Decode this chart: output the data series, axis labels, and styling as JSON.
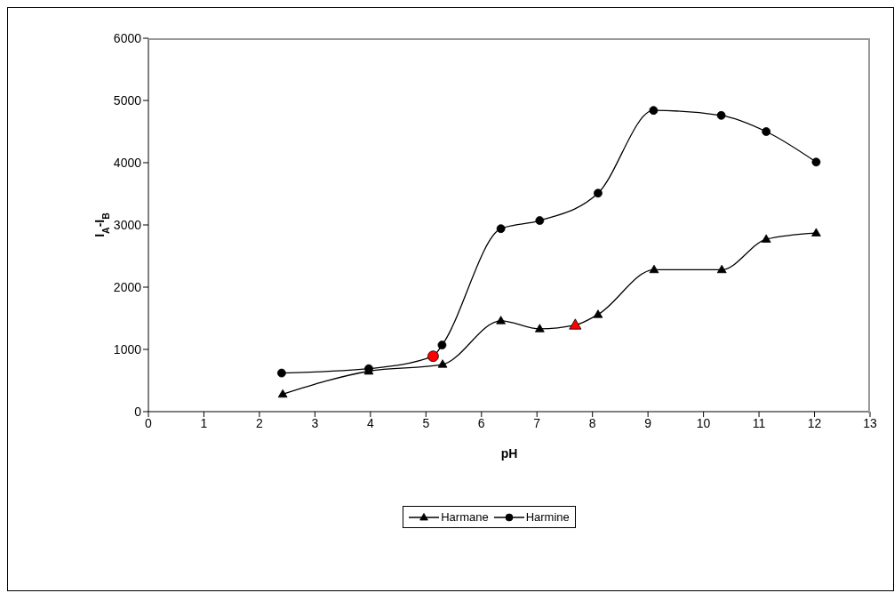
{
  "chart_data": {
    "type": "line",
    "xlabel": "pH",
    "ylabel": "I$_{A}$-I$_{B}$",
    "xlim": [
      0,
      13
    ],
    "xticks": [
      0,
      1,
      2,
      3,
      4,
      5,
      6,
      7,
      8,
      9,
      10,
      11,
      12,
      13
    ],
    "ylim": [
      0,
      6000
    ],
    "yticks": [
      0,
      1000,
      2000,
      3000,
      4000,
      5000,
      6000
    ],
    "grid": false,
    "legend": "bottom",
    "line_style": "solid",
    "series": [
      {
        "name": "Harmane",
        "color": "#000000",
        "marker": "triangle",
        "x": [
          2.42,
          3.97,
          5.3,
          6.35,
          7.05,
          7.69,
          8.1,
          9.11,
          10.33,
          11.13,
          12.03
        ],
        "values": [
          280,
          650,
          760,
          1460,
          1330,
          1390,
          1560,
          2280,
          2280,
          2770,
          2870
        ],
        "colors": [
          "#000000",
          "#000000",
          "#000000",
          "#000000",
          "#000000",
          "#ff0000",
          "#000000",
          "#000000",
          "#000000",
          "#000000",
          "#000000"
        ]
      },
      {
        "name": "Harmine",
        "color": "#000000",
        "marker": "circle",
        "x": [
          2.4,
          3.97,
          5.13,
          5.29,
          6.35,
          7.05,
          8.1,
          9.1,
          10.32,
          11.13,
          12.03
        ],
        "values": [
          620,
          690,
          890,
          1070,
          2940,
          3070,
          3510,
          4840,
          4760,
          4500,
          4010
        ],
        "colors": [
          "#000000",
          "#000000",
          "#ff0000",
          "#000000",
          "#000000",
          "#000000",
          "#000000",
          "#000000",
          "#000000",
          "#000000",
          "#000000"
        ]
      }
    ]
  }
}
